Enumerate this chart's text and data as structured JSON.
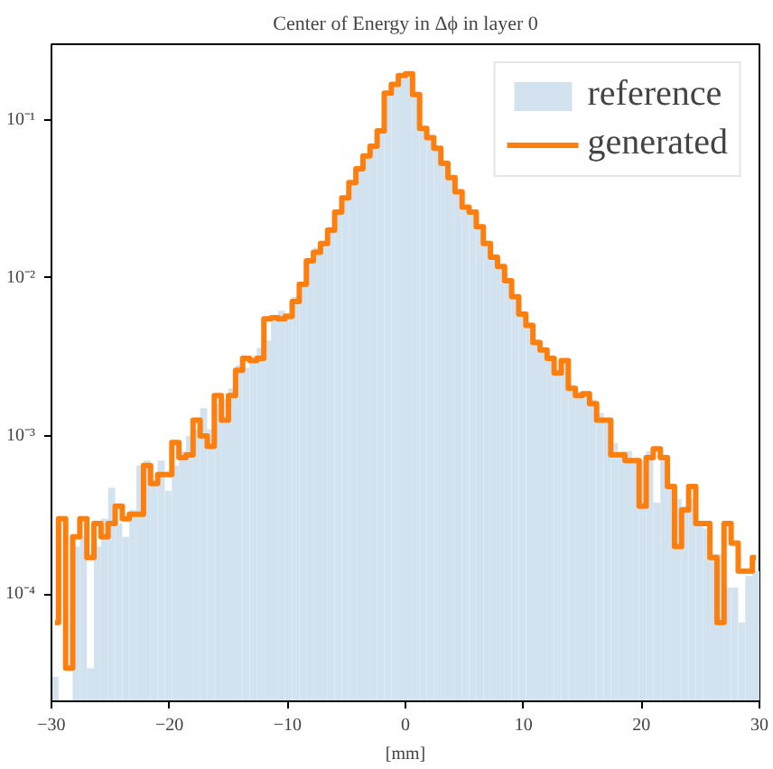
{
  "chart_data": {
    "type": "histogram",
    "title": "Center of Energy in Δϕ in layer 0",
    "xlabel": "[mm]",
    "bins": [
      -30.0,
      -29.4,
      -28.8,
      -28.2,
      -27.6,
      -27.0,
      -26.4,
      -25.8,
      -25.2,
      -24.6,
      -24.0,
      -23.4,
      -22.8,
      -22.2,
      -21.6,
      -21.0,
      -20.4,
      -19.8,
      -19.2,
      -18.6,
      -18.0,
      -17.4,
      -16.8,
      -16.2,
      -15.6,
      -15.0,
      -14.4,
      -13.8,
      -13.2,
      -12.6,
      -12.0,
      -11.4,
      -10.8,
      -10.2,
      -9.6,
      -9.0,
      -8.4,
      -7.8,
      -7.2,
      -6.6,
      -6.0,
      -5.4,
      -4.8,
      -4.2,
      -3.6,
      -3.0,
      -2.4,
      -1.8,
      -1.2,
      -0.6,
      0.0,
      0.6,
      1.2,
      1.8,
      2.4,
      3.0,
      3.6,
      4.2,
      4.8,
      5.4,
      6.0,
      6.6,
      7.2,
      7.8,
      8.4,
      9.0,
      9.6,
      10.2,
      10.8,
      11.4,
      12.0,
      12.6,
      13.2,
      13.8,
      14.4,
      15.0,
      15.6,
      16.2,
      16.8,
      17.4,
      18.0,
      18.6,
      19.2,
      19.8,
      20.4,
      21.0,
      21.6,
      22.2,
      22.8,
      23.4,
      24.0,
      24.6,
      25.2,
      25.8,
      26.4,
      27.0,
      27.6,
      28.2,
      28.8,
      29.4,
      30.0
    ],
    "series": [
      {
        "name": "reference",
        "color": "#d2e3ef",
        "values": [
          3e-05,
          null,
          null,
          0.0002,
          0.00023,
          3.4e-05,
          0.0002,
          0.0003,
          0.00047,
          0.00028,
          0.00023,
          0.00034,
          0.00065,
          0.0007,
          0.00052,
          0.0007,
          0.00045,
          0.00065,
          0.0008,
          0.001,
          0.0011,
          0.0015,
          0.0011,
          0.0016,
          0.0017,
          0.002,
          0.0028,
          0.0027,
          0.003,
          0.0036,
          0.004,
          0.0058,
          0.0062,
          0.006,
          0.0076,
          0.0095,
          0.013,
          0.0155,
          0.017,
          0.021,
          0.026,
          0.032,
          0.04,
          0.048,
          0.058,
          0.066,
          0.082,
          0.14,
          0.16,
          0.18,
          0.185,
          0.14,
          0.085,
          0.075,
          0.064,
          0.052,
          0.042,
          0.034,
          0.028,
          0.026,
          0.021,
          0.0165,
          0.0135,
          0.0118,
          0.0093,
          0.0078,
          0.006,
          0.0052,
          0.0041,
          0.0036,
          0.0032,
          0.0026,
          0.0029,
          0.0021,
          0.0019,
          0.0019,
          0.0017,
          0.0014,
          0.0013,
          0.0009,
          0.0008,
          0.0008,
          0.0007,
          0.0007,
          0.0008,
          0.00038,
          0.0007,
          0.0005,
          0.0004,
          0.00036,
          0.0004,
          0.00028,
          0.00026,
          0.00018,
          0.00018,
          0.00011,
          0.00011,
          6.6e-05,
          0.00013,
          0.00014
        ]
      },
      {
        "name": "generated",
        "type": "step",
        "color": "#ff7f0e",
        "x": [
          -29.7,
          -29.1,
          -28.5,
          -27.9,
          -27.3,
          -26.7,
          -26.1,
          -25.5,
          -24.9,
          -24.3,
          -23.7,
          -23.1,
          -22.5,
          -21.9,
          -21.3,
          -20.7,
          -20.1,
          -19.5,
          -18.9,
          -18.3,
          -17.7,
          -17.1,
          -16.5,
          -15.9,
          -15.3,
          -14.7,
          -14.1,
          -13.5,
          -12.9,
          -12.3,
          -11.7,
          -11.1,
          -10.5,
          -9.9,
          -9.3,
          -8.7,
          -8.1,
          -7.5,
          -6.9,
          -6.3,
          -5.7,
          -5.1,
          -4.5,
          -3.9,
          -3.3,
          -2.7,
          -2.1,
          -1.5,
          -0.9,
          -0.3,
          0.3,
          0.9,
          1.5,
          2.1,
          2.7,
          3.3,
          3.9,
          4.5,
          5.1,
          5.7,
          6.3,
          6.9,
          7.5,
          8.1,
          8.7,
          9.3,
          9.9,
          10.5,
          11.1,
          11.7,
          12.3,
          12.9,
          13.5,
          14.1,
          14.7,
          15.3,
          15.9,
          16.5,
          17.1,
          17.7,
          18.3,
          18.9,
          19.5,
          20.1,
          20.7,
          21.3,
          21.9,
          22.5,
          23.1,
          23.7,
          24.3,
          24.9,
          25.5,
          26.1,
          26.7,
          27.3,
          27.9,
          28.5,
          29.1,
          29.7
        ],
        "values": [
          6.6e-05,
          0.0003,
          3.4e-05,
          0.00023,
          0.0003,
          0.00017,
          0.00028,
          0.00023,
          0.00028,
          0.00036,
          0.0003,
          0.00032,
          0.00032,
          0.00065,
          0.0005,
          0.00057,
          0.00057,
          0.00091,
          0.00073,
          0.00076,
          0.00126,
          0.001,
          0.00086,
          0.0018,
          0.00126,
          0.0018,
          0.0026,
          0.0031,
          0.003,
          0.0031,
          0.0055,
          0.0056,
          0.0055,
          0.0057,
          0.0071,
          0.0091,
          0.0128,
          0.0145,
          0.0165,
          0.02,
          0.026,
          0.032,
          0.04,
          0.049,
          0.059,
          0.068,
          0.085,
          0.147,
          0.167,
          0.19,
          0.195,
          0.144,
          0.088,
          0.077,
          0.066,
          0.053,
          0.043,
          0.035,
          0.028,
          0.026,
          0.021,
          0.0165,
          0.0135,
          0.0118,
          0.0096,
          0.0076,
          0.0059,
          0.005,
          0.0039,
          0.0035,
          0.0031,
          0.0025,
          0.003,
          0.002,
          0.0018,
          0.00185,
          0.0016,
          0.00126,
          0.00126,
          0.00076,
          0.00076,
          0.0007,
          0.0007,
          0.00036,
          0.00073,
          0.00083,
          0.00073,
          0.00048,
          0.0002,
          0.00034,
          0.00048,
          0.00028,
          0.00028,
          0.00017,
          6.6e-05,
          0.00028,
          0.00021,
          0.00014,
          0.00014,
          0.00017
        ]
      }
    ],
    "xlim": [
      -30,
      30
    ],
    "xticks": [
      {
        "value": -30,
        "label": "−30"
      },
      {
        "value": -20,
        "label": "−20"
      },
      {
        "value": -10,
        "label": "−10"
      },
      0,
      10,
      20,
      30
    ],
    "ylim": [
      2.1e-05,
      0.3
    ],
    "yticks": [
      {
        "value": 0.0001,
        "label": "10⁻⁴"
      },
      {
        "value": 0.001,
        "label": "10⁻³"
      },
      {
        "value": 0.01,
        "label": "10⁻²"
      },
      {
        "value": 0.1,
        "label": "10⁻¹"
      }
    ],
    "log": "y",
    "grid": false,
    "legend": "top right"
  }
}
